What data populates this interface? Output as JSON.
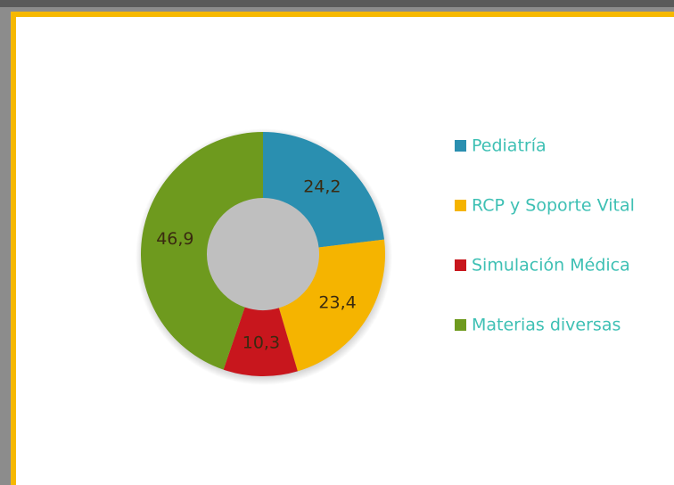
{
  "chart_data": {
    "type": "pie",
    "categories": [
      "Pediatría",
      "RCP y Soporte Vital",
      "Simulación Médica",
      "Materias diversas"
    ],
    "values": [
      24.2,
      23.4,
      10.3,
      46.9
    ],
    "value_labels": [
      "24,2",
      "23,4",
      "10,3",
      "46,9"
    ],
    "colors": [
      "#2a8fb0",
      "#f5b400",
      "#c8161d",
      "#6e9a1e"
    ],
    "donut": true,
    "legend": "right"
  }
}
